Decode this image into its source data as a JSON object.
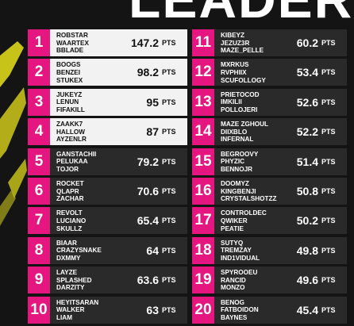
{
  "header": {
    "title": "LEADER"
  },
  "unit": "PTS",
  "rows": [
    {
      "rank": 1,
      "names": [
        "ROBSTAR",
        "WAARTEX",
        "BBLADE"
      ],
      "points": 147.2
    },
    {
      "rank": 2,
      "names": [
        "BOOGS",
        "BENZEI",
        "STUKEX"
      ],
      "points": 98.2
    },
    {
      "rank": 3,
      "names": [
        "JUKEYZ",
        "LENUN",
        "FIFAKILL"
      ],
      "points": 95
    },
    {
      "rank": 4,
      "names": [
        "ZAAKK7",
        "HALLOW",
        "AYZENLR"
      ],
      "points": 87
    },
    {
      "rank": 5,
      "names": [
        "GANSTACHII",
        "PELUKAA",
        "TOJOR"
      ],
      "points": 79.2
    },
    {
      "rank": 6,
      "names": [
        "ROCKET",
        "QLAPR",
        "ZACHAR"
      ],
      "points": 70.6
    },
    {
      "rank": 7,
      "names": [
        "REVOLT",
        "LUCIANO",
        "SKULLZ"
      ],
      "points": 65.4
    },
    {
      "rank": 8,
      "names": [
        "BIAAR",
        "CRAZYSNAKE",
        "DXMMY"
      ],
      "points": 64
    },
    {
      "rank": 9,
      "names": [
        "LAYZE",
        "SPLASHED",
        "DARZITY"
      ],
      "points": 63.6
    },
    {
      "rank": 10,
      "names": [
        "HEYITSARAN",
        "WALKER",
        "LIAM"
      ],
      "points": 63
    },
    {
      "rank": 11,
      "names": [
        "KIBEYZ",
        "JEZUZ3R",
        "MAZE_PELLE"
      ],
      "points": 60.2
    },
    {
      "rank": 12,
      "names": [
        "MXRKUS",
        "RVPHIIX",
        "SCUFOLLOGY"
      ],
      "points": 53.4
    },
    {
      "rank": 13,
      "names": [
        "PRIETOCOD",
        "IMKILII",
        "POLLOJERI"
      ],
      "points": 52.6
    },
    {
      "rank": 14,
      "names": [
        "MAZE ZGHOUL",
        "DIIXBLO",
        "INFERNAL"
      ],
      "points": 52.2
    },
    {
      "rank": 15,
      "names": [
        "BEGROOVY",
        "PHYZIC",
        "BENNOJR"
      ],
      "points": 51.4
    },
    {
      "rank": 16,
      "names": [
        "DOOMYZ",
        "KINGBENJI",
        "CRYSTALSHOTZZ"
      ],
      "points": 50.8
    },
    {
      "rank": 17,
      "names": [
        "CONTROLDEC",
        "QWIKER",
        "PEATIE"
      ],
      "points": 50.2
    },
    {
      "rank": 18,
      "names": [
        "SUTYQ",
        "TREMZAY",
        "IND1VIDUAL"
      ],
      "points": 49.8
    },
    {
      "rank": 19,
      "names": [
        "SPYROOEU",
        "RANCID",
        "MONZO"
      ],
      "points": 49.6
    },
    {
      "rank": 20,
      "names": [
        "BENOG",
        "FATBOIDON",
        "BAYNES"
      ],
      "points": 45.4
    }
  ]
}
